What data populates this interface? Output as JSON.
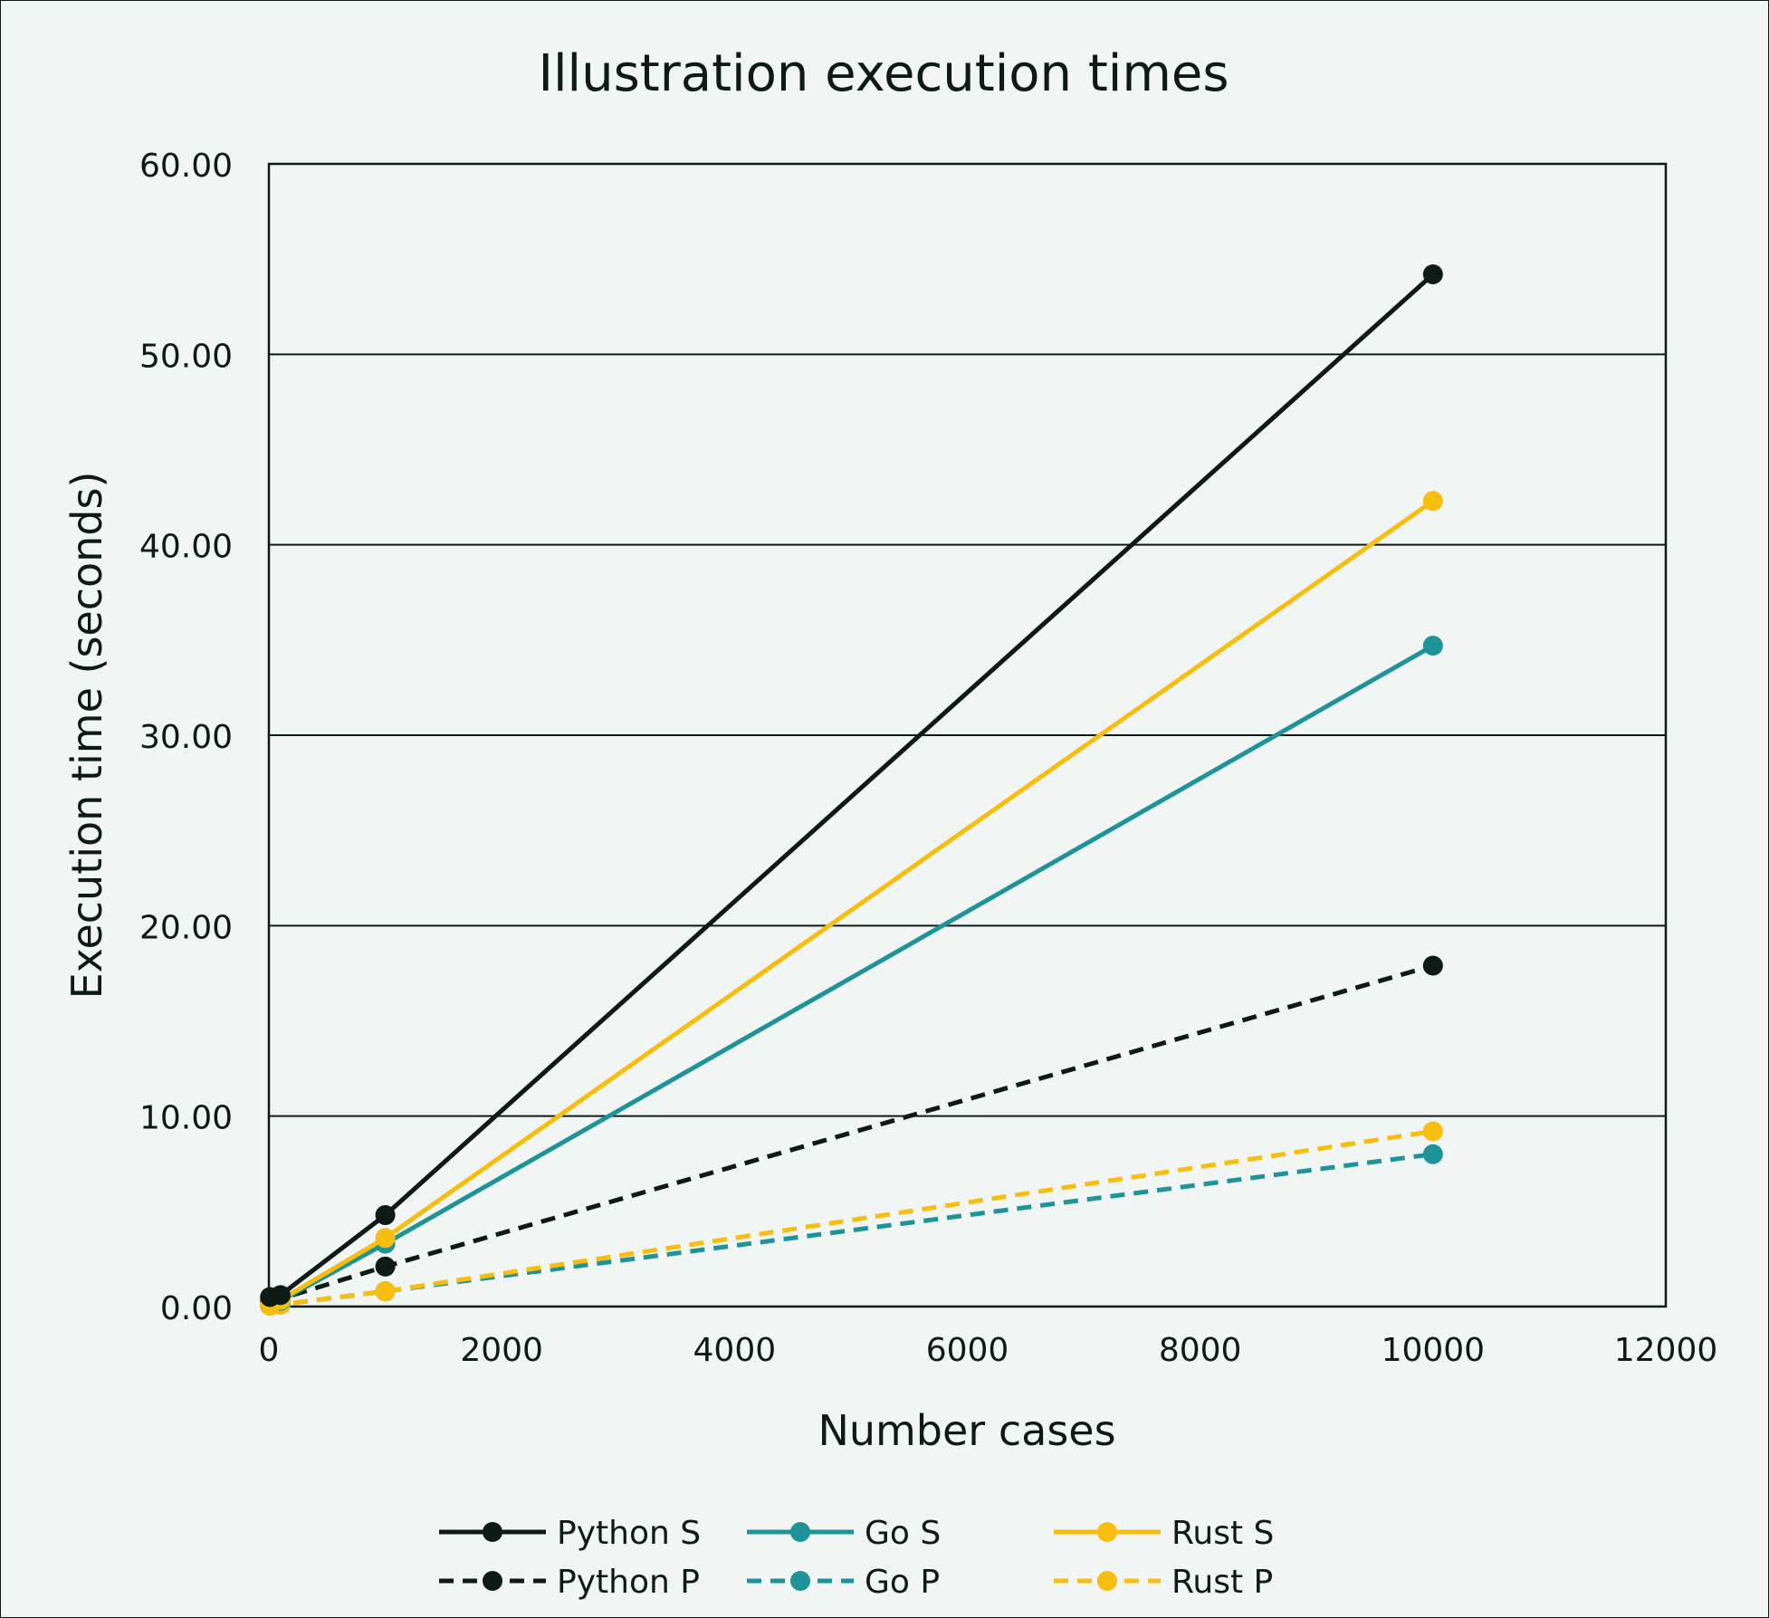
{
  "chart_data": {
    "type": "line",
    "title": "Illustration execution times",
    "xlabel": "Number cases",
    "ylabel": "Execution time (seconds)",
    "xlim": [
      0,
      12000
    ],
    "ylim": [
      0,
      60
    ],
    "x_ticks": [
      "0",
      "2000",
      "4000",
      "6000",
      "8000",
      "10000",
      "12000"
    ],
    "y_ticks": [
      "0.00",
      "10.00",
      "20.00",
      "30.00",
      "40.00",
      "50.00",
      "60.00"
    ],
    "grid": "horizontal",
    "legend_position": "bottom",
    "x": [
      10,
      100,
      1000,
      10000
    ],
    "series": [
      {
        "name": "Python S",
        "values": [
          0.5,
          0.6,
          4.8,
          54.2
        ],
        "color": "#0d1a16",
        "dash": "solid"
      },
      {
        "name": "Go S",
        "values": [
          0.05,
          0.3,
          3.3,
          34.7
        ],
        "color": "#1e9499",
        "dash": "solid"
      },
      {
        "name": "Rust S",
        "values": [
          0.05,
          0.35,
          3.6,
          42.3
        ],
        "color": "#f7bd0f",
        "dash": "solid"
      },
      {
        "name": "Python P",
        "values": [
          0.3,
          0.4,
          2.1,
          17.9
        ],
        "color": "#0d1a16",
        "dash": "dashed"
      },
      {
        "name": "Go P",
        "values": [
          0.05,
          0.1,
          0.8,
          8.0
        ],
        "color": "#1e9499",
        "dash": "dashed"
      },
      {
        "name": "Rust P",
        "values": [
          0.05,
          0.1,
          0.8,
          9.2
        ],
        "color": "#f7bd0f",
        "dash": "dashed"
      }
    ]
  }
}
